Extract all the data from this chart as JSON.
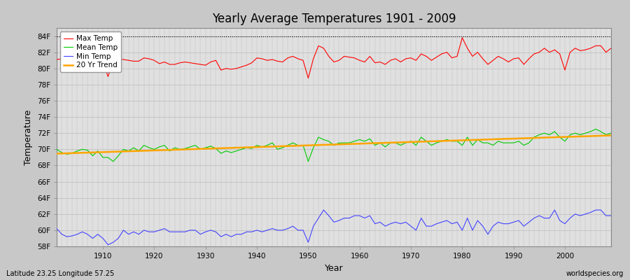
{
  "title": "Yearly Average Temperatures 1901 - 2009",
  "xlabel": "Year",
  "ylabel": "Temperature",
  "bottom_left": "Latitude 23.25 Longitude 57.25",
  "bottom_right": "worldspecies.org",
  "bg_color": "#c8c8c8",
  "plot_bg_color": "#e0e0e0",
  "legend_entries": [
    "Max Temp",
    "Mean Temp",
    "Min Temp",
    "20 Yr Trend"
  ],
  "legend_colors": [
    "#ff0000",
    "#00cc00",
    "#0000ff",
    "#ffa500"
  ],
  "ylim": [
    58,
    85
  ],
  "yticks": [
    58,
    60,
    62,
    64,
    66,
    68,
    70,
    72,
    74,
    76,
    78,
    80,
    82,
    84
  ],
  "ytick_labels": [
    "58F",
    "60F",
    "62F",
    "64F",
    "66F",
    "68F",
    "70F",
    "72F",
    "74F",
    "76F",
    "78F",
    "80F",
    "82F",
    "84F"
  ],
  "xlim": [
    1901,
    2009
  ],
  "xticks": [
    1910,
    1920,
    1930,
    1940,
    1950,
    1960,
    1970,
    1980,
    1990,
    2000
  ],
  "years": [
    1901,
    1902,
    1903,
    1904,
    1905,
    1906,
    1907,
    1908,
    1909,
    1910,
    1911,
    1912,
    1913,
    1914,
    1915,
    1916,
    1917,
    1918,
    1919,
    1920,
    1921,
    1922,
    1923,
    1924,
    1925,
    1926,
    1927,
    1928,
    1929,
    1930,
    1931,
    1932,
    1933,
    1934,
    1935,
    1936,
    1937,
    1938,
    1939,
    1940,
    1941,
    1942,
    1943,
    1944,
    1945,
    1946,
    1947,
    1948,
    1949,
    1950,
    1951,
    1952,
    1953,
    1954,
    1955,
    1956,
    1957,
    1958,
    1959,
    1960,
    1961,
    1962,
    1963,
    1964,
    1965,
    1966,
    1967,
    1968,
    1969,
    1970,
    1971,
    1972,
    1973,
    1974,
    1975,
    1976,
    1977,
    1978,
    1979,
    1980,
    1981,
    1982,
    1983,
    1984,
    1985,
    1986,
    1987,
    1988,
    1989,
    1990,
    1991,
    1992,
    1993,
    1994,
    1995,
    1996,
    1997,
    1998,
    1999,
    2000,
    2001,
    2002,
    2003,
    2004,
    2005,
    2006,
    2007,
    2008,
    2009
  ],
  "max_temp": [
    81.1,
    81.2,
    81.0,
    81.3,
    81.4,
    81.5,
    81.2,
    81.0,
    81.4,
    80.8,
    79.0,
    80.8,
    81.2,
    81.1,
    81.0,
    80.9,
    80.9,
    81.3,
    81.2,
    81.0,
    80.6,
    80.8,
    80.5,
    80.5,
    80.7,
    80.8,
    80.7,
    80.6,
    80.5,
    80.4,
    80.8,
    81.0,
    79.8,
    80.0,
    79.9,
    80.0,
    80.2,
    80.4,
    80.7,
    81.3,
    81.2,
    81.0,
    81.1,
    80.9,
    80.8,
    81.3,
    81.5,
    81.2,
    81.0,
    78.8,
    81.2,
    82.8,
    82.5,
    81.5,
    80.8,
    81.0,
    81.5,
    81.4,
    81.3,
    81.0,
    80.8,
    81.5,
    80.7,
    80.8,
    80.5,
    81.0,
    81.2,
    80.8,
    81.2,
    81.3,
    81.0,
    81.8,
    81.5,
    81.0,
    81.4,
    81.8,
    82.0,
    81.3,
    81.5,
    83.8,
    82.5,
    81.5,
    82.0,
    81.2,
    80.5,
    81.0,
    81.5,
    81.2,
    80.8,
    81.2,
    81.3,
    80.5,
    81.2,
    81.8,
    82.0,
    82.5,
    82.0,
    82.3,
    81.8,
    79.8,
    82.0,
    82.5,
    82.2,
    82.3,
    82.5,
    82.8,
    82.8,
    82.0,
    82.5
  ],
  "mean_temp": [
    70.0,
    69.6,
    69.4,
    69.5,
    69.8,
    70.0,
    69.9,
    69.2,
    69.8,
    69.0,
    69.0,
    68.5,
    69.2,
    70.0,
    69.8,
    70.2,
    69.8,
    70.5,
    70.2,
    70.0,
    70.3,
    70.5,
    69.8,
    70.2,
    70.0,
    70.1,
    70.3,
    70.5,
    70.0,
    70.2,
    70.4,
    70.1,
    69.5,
    69.8,
    69.6,
    69.8,
    70.0,
    70.2,
    70.1,
    70.5,
    70.3,
    70.5,
    70.8,
    70.0,
    70.2,
    70.5,
    70.8,
    70.5,
    70.5,
    68.5,
    70.2,
    71.5,
    71.2,
    71.0,
    70.5,
    70.8,
    70.8,
    70.8,
    71.0,
    71.2,
    71.0,
    71.3,
    70.5,
    70.8,
    70.3,
    70.8,
    70.8,
    70.5,
    70.8,
    71.0,
    70.5,
    71.5,
    71.0,
    70.5,
    70.8,
    71.0,
    71.2,
    71.0,
    71.0,
    70.5,
    71.5,
    70.5,
    71.2,
    70.8,
    70.8,
    70.5,
    71.0,
    70.8,
    70.8,
    70.8,
    71.0,
    70.5,
    70.8,
    71.5,
    71.8,
    72.0,
    71.8,
    72.2,
    71.5,
    71.0,
    71.8,
    72.0,
    71.8,
    72.0,
    72.2,
    72.5,
    72.2,
    71.8,
    72.0
  ],
  "min_temp": [
    60.2,
    59.5,
    59.2,
    59.3,
    59.5,
    59.8,
    59.5,
    59.0,
    59.5,
    59.0,
    58.2,
    58.5,
    59.0,
    60.0,
    59.5,
    59.8,
    59.5,
    60.0,
    59.8,
    59.8,
    60.0,
    60.2,
    59.8,
    59.8,
    59.8,
    59.8,
    60.0,
    60.0,
    59.5,
    59.8,
    60.0,
    59.8,
    59.2,
    59.5,
    59.2,
    59.5,
    59.5,
    59.8,
    59.8,
    60.0,
    59.8,
    60.0,
    60.2,
    60.0,
    60.0,
    60.2,
    60.5,
    60.0,
    60.0,
    58.5,
    60.5,
    61.5,
    62.5,
    61.8,
    61.0,
    61.2,
    61.5,
    61.5,
    61.8,
    61.8,
    61.5,
    61.8,
    60.8,
    61.0,
    60.5,
    60.8,
    61.0,
    60.8,
    61.0,
    60.5,
    60.0,
    61.5,
    60.5,
    60.5,
    60.8,
    61.0,
    61.2,
    60.8,
    61.0,
    60.0,
    61.5,
    60.0,
    61.2,
    60.5,
    59.5,
    60.5,
    61.0,
    60.8,
    60.8,
    61.0,
    61.2,
    60.5,
    61.0,
    61.5,
    61.8,
    61.5,
    61.5,
    62.5,
    61.2,
    60.8,
    61.5,
    62.0,
    61.8,
    62.0,
    62.2,
    62.5,
    62.5,
    61.8,
    61.8
  ],
  "trend_color": "#ffa500",
  "max_color": "#ff0000",
  "mean_color": "#00cc00",
  "min_color": "#4444ff",
  "dotted_line_y": 84,
  "grid_color": "#cccccc",
  "grid_linewidth": 0.5
}
